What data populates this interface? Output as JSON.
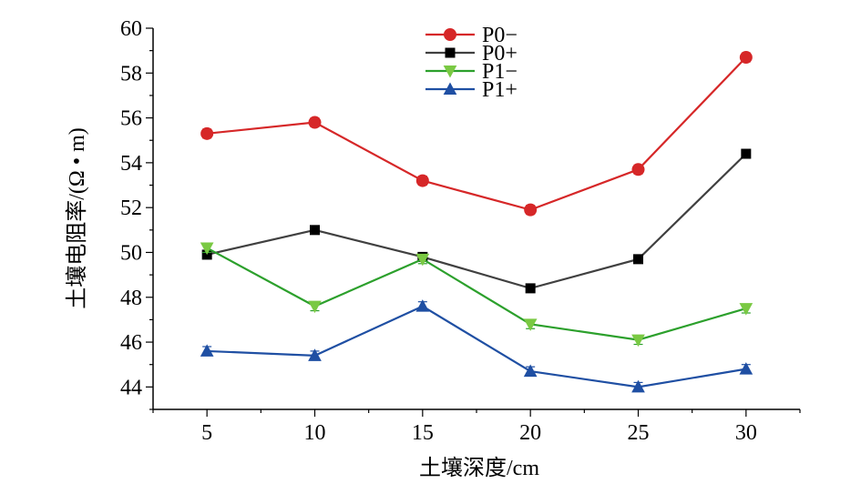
{
  "chart_data": {
    "type": "line",
    "title": "",
    "xlabel": "土壤深度/cm",
    "ylabel": "土壤电阻率/(Ω • m)",
    "x": [
      5,
      10,
      15,
      20,
      25,
      30
    ],
    "xlim": [
      2.5,
      32.5
    ],
    "ylim": [
      43,
      60
    ],
    "xticks": [
      5,
      10,
      15,
      20,
      25,
      30
    ],
    "yticks": [
      44,
      46,
      48,
      50,
      52,
      54,
      56,
      58,
      60
    ],
    "grid": false,
    "legend_position": "top-center",
    "series": [
      {
        "name": "P0−",
        "color": "#d62728",
        "marker": "circle",
        "values": [
          55.3,
          55.8,
          53.2,
          51.9,
          53.7,
          58.7
        ],
        "error": 0.2
      },
      {
        "name": "P0+",
        "color": "#404040",
        "marker": "square",
        "values": [
          49.9,
          51.0,
          49.8,
          48.4,
          49.7,
          54.4
        ],
        "error": 0.1
      },
      {
        "name": "P1−",
        "color": "#2ca02c",
        "marker": "triangle-down",
        "values": [
          50.2,
          47.6,
          49.7,
          46.8,
          46.1,
          47.5
        ],
        "error": 0.2
      },
      {
        "name": "P1+",
        "color": "#1f4fa3",
        "marker": "triangle-up",
        "values": [
          45.6,
          45.4,
          47.6,
          44.7,
          44.0,
          44.8
        ],
        "error": 0.2
      }
    ]
  }
}
